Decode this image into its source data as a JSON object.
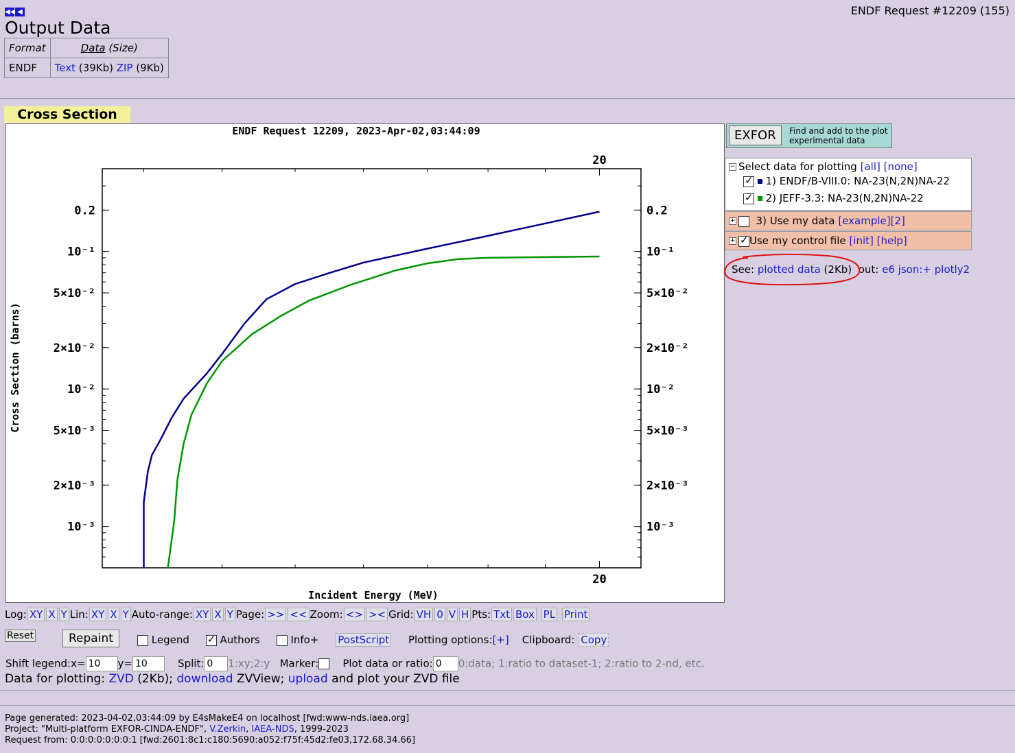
{
  "header": {
    "request_title": "ENDF Request #12209 (155)",
    "output_title": "Output Data"
  },
  "output_table": {
    "col_format": "Format",
    "col_data": "Data",
    "col_size": "(Size)",
    "format": "ENDF",
    "text_link": "Text",
    "text_size": "(39Kb)",
    "zip_link": "ZIP",
    "zip_size": "(9Kb)"
  },
  "section_tab": "Cross Section",
  "chart_data": {
    "type": "line",
    "title": "ENDF Request 12209, 2023-Apr-02,03:44:09",
    "xlabel": "Incident Energy (MeV)",
    "ylabel": "Cross Section (barns)",
    "x_scale": "log",
    "y_scale": "log",
    "xlim": [
      12.5,
      20.8
    ],
    "ylim": [
      0.0005,
      0.4
    ],
    "x_tick_label": "20",
    "y_ticks": [
      "0.2",
      "10⁻¹",
      "5×10⁻²",
      "2×10⁻²",
      "10⁻²",
      "5×10⁻³",
      "2×10⁻³",
      "10⁻³"
    ],
    "grid": false,
    "series": [
      {
        "name": "1) ENDF/B-VIII.0: NA-23(N,2N)NA-22",
        "color": "#00008b",
        "x": [
          13.0,
          13.0,
          13.05,
          13.1,
          13.2,
          13.35,
          13.5,
          13.8,
          14.0,
          14.3,
          14.6,
          15.0,
          15.5,
          16.0,
          17.0,
          18.0,
          19.0,
          20.0
        ],
        "y": [
          0.0005,
          0.0015,
          0.0025,
          0.0033,
          0.0042,
          0.0062,
          0.0085,
          0.013,
          0.018,
          0.03,
          0.045,
          0.058,
          0.07,
          0.083,
          0.105,
          0.13,
          0.16,
          0.195
        ]
      },
      {
        "name": "2) JEFF-3.3: NA-23(N,2N)NA-22",
        "color": "#009600",
        "x": [
          13.3,
          13.38,
          13.42,
          13.5,
          13.6,
          13.8,
          14.0,
          14.4,
          14.8,
          15.2,
          15.8,
          16.5,
          17.0,
          17.5,
          18.0,
          19.0,
          20.0
        ],
        "y": [
          0.0005,
          0.0011,
          0.0022,
          0.004,
          0.0065,
          0.011,
          0.016,
          0.025,
          0.034,
          0.044,
          0.057,
          0.073,
          0.082,
          0.088,
          0.09,
          0.091,
          0.092
        ]
      }
    ]
  },
  "exfor": {
    "button": "EXFOR",
    "hint_line1": "Find and add to the plot",
    "hint_line2": "experimental data"
  },
  "select": {
    "label": "Select data for plotting",
    "all": "[all]",
    "none": "[none]",
    "item1": "1) ENDF/B-VIII.0: NA-23(N,2N)NA-22",
    "item2": "2) JEFF-3.3: NA-23(N,2N)NA-22",
    "item1_color": "#00008b",
    "item2_color": "#009600"
  },
  "mydata": {
    "label": "3) Use my data",
    "link": "[example]",
    "link2": "[2]"
  },
  "control": {
    "label": "Use my control file",
    "init": "[init]",
    "help": "[help]"
  },
  "see": {
    "prefix": "See:",
    "link": "plotted data",
    "size": "(2Kb)",
    "out": "out:",
    "e6": "e6",
    "json": "json:+",
    "plotly": "plotly2"
  },
  "toolbar": {
    "log": "Log:",
    "lin": "Lin:",
    "autorange": "Auto-range:",
    "page": "Page:",
    "zoom": "Zoom:",
    "grid": "Grid:",
    "pts": "Pts:",
    "xy": "XY",
    "x": "X",
    "y": "Y",
    "next": ">>",
    "prev": "<<",
    "zin": "<>",
    "zout": "><",
    "vh": "VH",
    "zero": "0",
    "v": "V",
    "h": "H",
    "txt": "Txt",
    "box": "Box",
    "pl": "PL",
    "print": "Print"
  },
  "controls": {
    "reset": "Reset",
    "repaint": "Repaint",
    "legend": "Legend",
    "authors": "Authors",
    "info": "Info+",
    "postscript": "PostScript",
    "plotting_options": "Plotting options:",
    "plus": "[+]",
    "clipboard": "Clipboard:",
    "copy": "Copy",
    "shift_legend": "Shift legend:x=",
    "shift_x": "10",
    "y_eq": "y=",
    "shift_y": "10",
    "split": "Split:",
    "split_val": "0",
    "split_hint": "1:xy;2:y",
    "marker": "Marker:",
    "ratio": "Plot data or ratio:",
    "ratio_val": "0",
    "ratio_hint": "0:data; 1:ratio to dataset-1; 2:ratio to 2-nd, etc."
  },
  "zvd": {
    "prefix": "Data for plotting:",
    "zvd": "ZVD",
    "size": "(2Kb);",
    "download": "download",
    "zvview": "ZVView;",
    "upload": "upload",
    "suffix": "and plot your ZVD file"
  },
  "footer": {
    "line1": "Page generated: 2023-04-02,03:44:09 by E4sMakeE4 on localhost [fwd:www-nds.iaea.org]",
    "line2a": "Project: \"Multi-platform EXFOR-CINDA-ENDF\",",
    "author": "V.Zerkin",
    "org": "IAEA-NDS",
    "line2b": ", 1999-2023",
    "line3": "Request from: 0:0:0:0:0:0:0:1 [fwd:2601:8c1:c180:5690:a052:f75f:45d2:fe03,172.68.34.66]"
  }
}
